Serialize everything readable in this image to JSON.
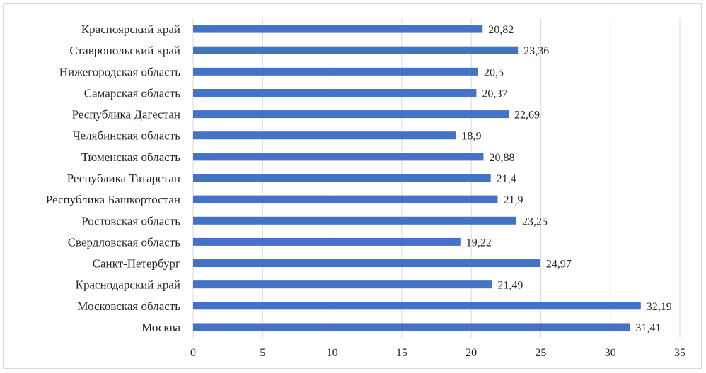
{
  "chart_data": {
    "type": "bar",
    "orientation": "horizontal",
    "categories": [
      "Красноярский край",
      "Ставропольский край",
      "Нижегородская область",
      "Самарская область",
      "Республика Дагестан",
      "Челябинская область",
      "Тюменская область",
      "Республика Татарстан",
      "Республика Башкортостан",
      "Ростовская область",
      "Свердловская область",
      "Санкт-Петербург",
      "Краснодарский край",
      "Московская область",
      "Москва"
    ],
    "values": [
      20.82,
      23.36,
      20.5,
      20.37,
      22.69,
      18.9,
      20.88,
      21.4,
      21.9,
      23.25,
      19.22,
      24.97,
      21.49,
      32.19,
      31.41
    ],
    "value_labels": [
      "20,82",
      "23,36",
      "20,5",
      "20,37",
      "22,69",
      "18,9",
      "20,88",
      "21,4",
      "21,9",
      "23,25",
      "19,22",
      "24,97",
      "21,49",
      "32,19",
      "31,41"
    ],
    "xlim": [
      0,
      35
    ],
    "xticks": [
      "0",
      "5",
      "10",
      "15",
      "20",
      "25",
      "30",
      "35"
    ],
    "title": "",
    "xlabel": "",
    "ylabel": "",
    "grid": "vertical",
    "bar_color": "#4472c4"
  }
}
